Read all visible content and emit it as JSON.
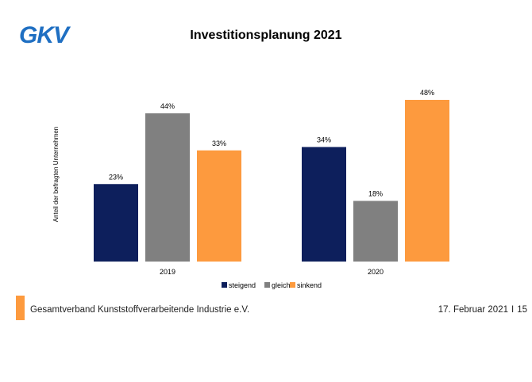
{
  "brand": {
    "logo_text": "GKV",
    "logo_color": "#1f6fc2"
  },
  "chart_data": {
    "type": "bar",
    "title": "Investitionsplanung 2021",
    "ylabel": "Anteil der befragten Unternehmen",
    "categories": [
      "2019",
      "2020"
    ],
    "series": [
      {
        "name": "steigend",
        "values": [
          23,
          34
        ],
        "labels": [
          "23%",
          "34%"
        ],
        "color": "#0d1f5c"
      },
      {
        "name": "gleich",
        "values": [
          44,
          18
        ],
        "labels": [
          "44%",
          "18%"
        ],
        "color": "#808080"
      },
      {
        "name": "sinkend",
        "values": [
          33,
          48
        ],
        "labels": [
          "33%",
          "48%"
        ],
        "color": "#fd9a3e"
      }
    ],
    "ylim": [
      0,
      48
    ],
    "grid": false,
    "legend": "bottom"
  },
  "footer": {
    "organization": "Gesamtverband Kunststoffverarbeitende Industrie e.V.",
    "date": "17. Februar 2021",
    "separator": "I",
    "page": "15",
    "accent_color": "#fd9a3e"
  }
}
